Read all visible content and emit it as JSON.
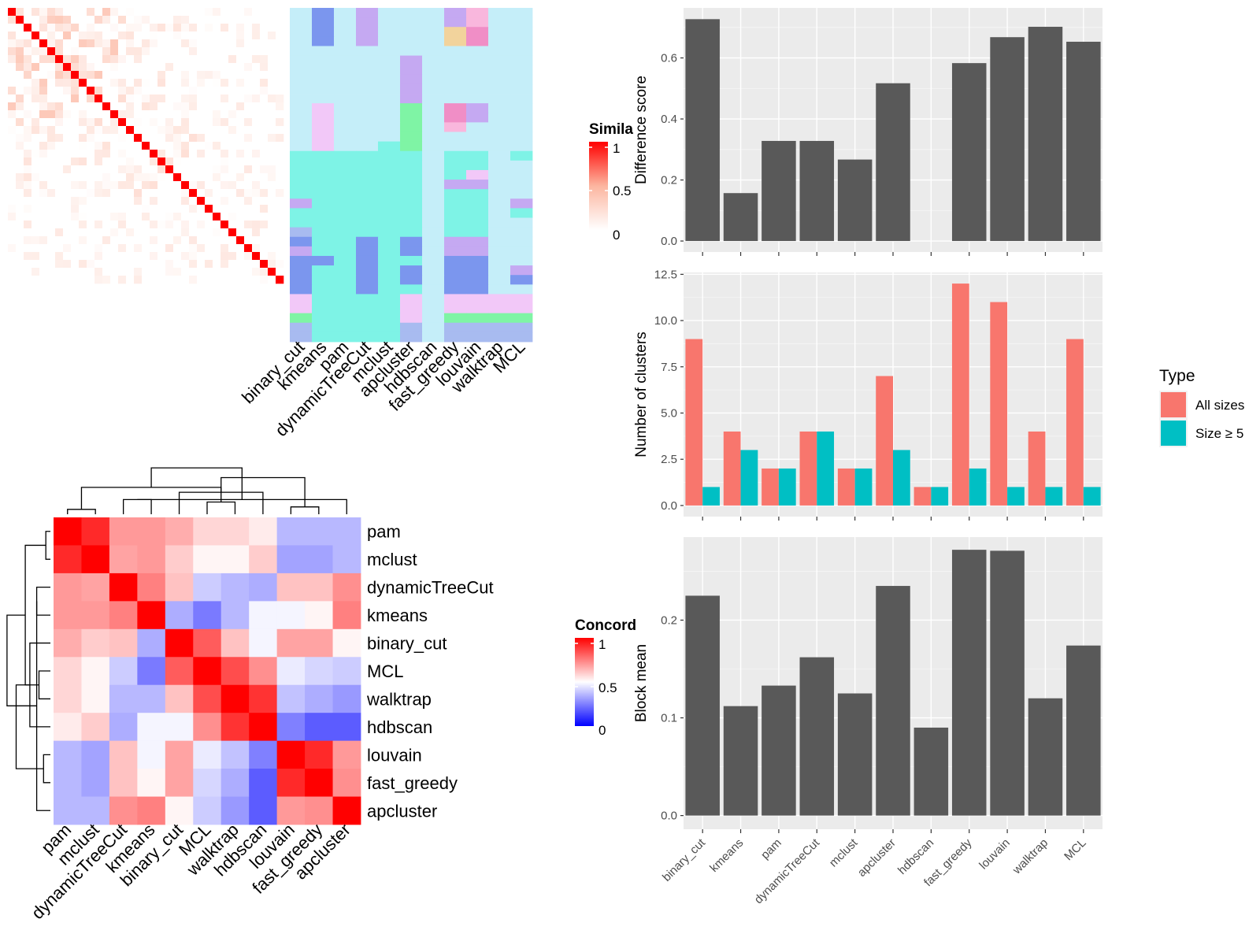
{
  "chart_data": [
    {
      "type": "heatmap",
      "id": "similarity_matrix",
      "legend_title": "Simila",
      "legend_ticks": [
        "1",
        "0.5",
        "0"
      ],
      "colors": {
        "low": "#ffffff",
        "mid": "#fcb59f",
        "high": "#ff0000"
      },
      "n_terms": 35,
      "xlabel": "",
      "ylabel": ""
    },
    {
      "type": "heatmap",
      "id": "cluster_membership",
      "columns": [
        "binary_cut",
        "kmeans",
        "pam",
        "dynamicTreeCut",
        "mclust",
        "apcluster",
        "hdbscan",
        "fast_greedy",
        "louvain",
        "walktrap",
        "MCL"
      ],
      "palette": [
        "#c5eef9",
        "#7ef3e6",
        "#c5a9f2",
        "#7b96ee",
        "#f2c8f8",
        "#7ff4a5",
        "#f08ec6",
        "#f9b7dd",
        "#f2d39c",
        "#a8bbf0",
        "#c5c1f4"
      ],
      "membership_rows": [
        [
          0,
          3,
          0,
          2,
          0,
          0,
          0,
          2,
          7,
          0,
          0
        ],
        [
          0,
          3,
          0,
          2,
          0,
          0,
          0,
          2,
          7,
          0,
          0
        ],
        [
          0,
          3,
          0,
          2,
          0,
          0,
          0,
          8,
          6,
          0,
          0
        ],
        [
          0,
          3,
          0,
          2,
          0,
          0,
          0,
          8,
          6,
          0,
          0
        ],
        [
          0,
          0,
          0,
          0,
          0,
          0,
          0,
          0,
          0,
          0,
          0
        ],
        [
          0,
          0,
          0,
          0,
          0,
          2,
          0,
          0,
          0,
          0,
          0
        ],
        [
          0,
          0,
          0,
          0,
          0,
          2,
          0,
          0,
          0,
          0,
          0
        ],
        [
          0,
          0,
          0,
          0,
          0,
          2,
          0,
          0,
          0,
          0,
          0
        ],
        [
          0,
          0,
          0,
          0,
          0,
          2,
          0,
          0,
          0,
          0,
          0
        ],
        [
          0,
          0,
          0,
          0,
          0,
          2,
          0,
          0,
          0,
          0,
          0
        ],
        [
          0,
          4,
          0,
          0,
          0,
          5,
          0,
          6,
          2,
          0,
          0
        ],
        [
          0,
          4,
          0,
          0,
          0,
          5,
          0,
          6,
          2,
          0,
          0
        ],
        [
          0,
          4,
          0,
          0,
          0,
          5,
          0,
          7,
          0,
          0,
          0
        ],
        [
          0,
          4,
          0,
          0,
          0,
          5,
          0,
          0,
          0,
          0,
          0
        ],
        [
          0,
          4,
          0,
          0,
          1,
          5,
          0,
          0,
          0,
          0,
          0
        ],
        [
          1,
          1,
          1,
          1,
          1,
          1,
          0,
          1,
          1,
          0,
          1
        ],
        [
          1,
          1,
          1,
          1,
          1,
          1,
          0,
          1,
          1,
          0,
          0
        ],
        [
          1,
          1,
          1,
          1,
          1,
          1,
          0,
          1,
          4,
          0,
          0
        ],
        [
          1,
          1,
          1,
          1,
          1,
          1,
          0,
          2,
          2,
          0,
          0
        ],
        [
          1,
          1,
          1,
          1,
          1,
          1,
          0,
          1,
          1,
          0,
          0
        ],
        [
          2,
          1,
          1,
          1,
          1,
          1,
          0,
          1,
          1,
          0,
          2
        ],
        [
          1,
          1,
          1,
          1,
          1,
          1,
          0,
          1,
          1,
          0,
          1
        ],
        [
          1,
          1,
          1,
          1,
          1,
          1,
          0,
          1,
          1,
          0,
          0
        ],
        [
          9,
          1,
          1,
          1,
          1,
          1,
          0,
          1,
          1,
          0,
          0
        ],
        [
          3,
          1,
          1,
          3,
          1,
          3,
          0,
          2,
          2,
          0,
          0
        ],
        [
          2,
          1,
          1,
          3,
          1,
          3,
          0,
          2,
          2,
          0,
          0
        ],
        [
          3,
          3,
          1,
          3,
          1,
          1,
          0,
          3,
          3,
          0,
          0
        ],
        [
          3,
          1,
          1,
          3,
          1,
          3,
          0,
          3,
          3,
          0,
          2
        ],
        [
          3,
          1,
          1,
          3,
          1,
          3,
          0,
          3,
          3,
          0,
          3
        ],
        [
          3,
          1,
          1,
          3,
          1,
          1,
          0,
          3,
          3,
          0,
          0
        ],
        [
          4,
          1,
          1,
          1,
          1,
          4,
          0,
          4,
          4,
          4,
          4
        ],
        [
          4,
          1,
          1,
          1,
          1,
          4,
          0,
          4,
          4,
          4,
          4
        ],
        [
          5,
          1,
          1,
          1,
          1,
          4,
          0,
          5,
          5,
          5,
          5
        ],
        [
          9,
          1,
          1,
          1,
          1,
          9,
          0,
          9,
          9,
          9,
          9
        ],
        [
          9,
          1,
          1,
          1,
          1,
          9,
          0,
          9,
          9,
          9,
          9
        ]
      ]
    },
    {
      "type": "heatmap",
      "id": "concordance",
      "legend_title": "Concord",
      "legend_ticks": [
        "1",
        "0.5",
        "0"
      ],
      "colors": {
        "low": "#0000ff",
        "mid": "#ffffff",
        "high": "#ff0000"
      },
      "rows": [
        "pam",
        "mclust",
        "dynamicTreeCut",
        "kmeans",
        "binary_cut",
        "MCL",
        "walktrap",
        "hdbscan",
        "louvain",
        "fast_greedy",
        "apcluster"
      ],
      "columns": [
        "pam",
        "mclust",
        "dynamicTreeCut",
        "kmeans",
        "binary_cut",
        "MCL",
        "walktrap",
        "hdbscan",
        "louvain",
        "fast_greedy",
        "apcluster"
      ],
      "values": [
        [
          1.0,
          0.92,
          0.7,
          0.7,
          0.66,
          0.58,
          0.58,
          0.54,
          0.36,
          0.36,
          0.36
        ],
        [
          0.92,
          1.0,
          0.68,
          0.7,
          0.6,
          0.52,
          0.52,
          0.6,
          0.32,
          0.32,
          0.36
        ],
        [
          0.7,
          0.68,
          1.0,
          0.75,
          0.62,
          0.4,
          0.36,
          0.34,
          0.62,
          0.62,
          0.72
        ],
        [
          0.7,
          0.7,
          0.75,
          1.0,
          0.34,
          0.24,
          0.36,
          0.48,
          0.48,
          0.52,
          0.75
        ],
        [
          0.66,
          0.6,
          0.62,
          0.34,
          1.0,
          0.82,
          0.62,
          0.48,
          0.68,
          0.68,
          0.52
        ],
        [
          0.58,
          0.52,
          0.4,
          0.24,
          0.82,
          1.0,
          0.85,
          0.72,
          0.46,
          0.42,
          0.4
        ],
        [
          0.58,
          0.52,
          0.36,
          0.36,
          0.62,
          0.85,
          1.0,
          0.9,
          0.38,
          0.34,
          0.3
        ],
        [
          0.54,
          0.6,
          0.34,
          0.48,
          0.48,
          0.72,
          0.9,
          1.0,
          0.25,
          0.18,
          0.18
        ],
        [
          0.36,
          0.32,
          0.62,
          0.48,
          0.68,
          0.46,
          0.38,
          0.25,
          1.0,
          0.92,
          0.7
        ],
        [
          0.36,
          0.32,
          0.62,
          0.52,
          0.68,
          0.42,
          0.34,
          0.18,
          0.92,
          1.0,
          0.72
        ],
        [
          0.36,
          0.36,
          0.72,
          0.75,
          0.52,
          0.4,
          0.3,
          0.18,
          0.7,
          0.72,
          1.0
        ]
      ],
      "row_dendrogram": [
        [
          0,
          1,
          0.1
        ],
        [
          2,
          3,
          0.3
        ],
        [
          9,
          8,
          0.15
        ],
        [
          5,
          6,
          0.25
        ],
        [
          4,
          7,
          0.45
        ],
        [
          12,
          10,
          0.3
        ],
        [
          11,
          15,
          0.55
        ],
        [
          13,
          14,
          0.75
        ],
        [
          16,
          17,
          0.95
        ]
      ],
      "col_dendrogram": [
        [
          0,
          1,
          0.1
        ],
        [
          2,
          3,
          0.3
        ],
        [
          9,
          8,
          0.15
        ],
        [
          5,
          6,
          0.25
        ],
        [
          4,
          7,
          0.45
        ],
        [
          12,
          10,
          0.3
        ],
        [
          11,
          15,
          0.55
        ],
        [
          13,
          14,
          0.75
        ],
        [
          16,
          17,
          0.95
        ]
      ]
    },
    {
      "type": "bar",
      "id": "difference_score",
      "categories": [
        "binary_cut",
        "kmeans",
        "pam",
        "dynamicTreeCut",
        "mclust",
        "apcluster",
        "hdbscan",
        "fast_greedy",
        "louvain",
        "walktrap",
        "MCL"
      ],
      "values": [
        0.727,
        0.157,
        0.328,
        0.328,
        0.267,
        0.517,
        null,
        0.583,
        0.668,
        0.702,
        0.653
      ],
      "xlabel": "",
      "ylabel": "Difference score",
      "yticks": [
        "0.0",
        "0.2",
        "0.4",
        "0.6"
      ],
      "ylim": [
        -0.036,
        0.764
      ],
      "bar_color": "#595959"
    },
    {
      "type": "bar",
      "id": "number_of_clusters",
      "categories": [
        "binary_cut",
        "kmeans",
        "pam",
        "dynamicTreeCut",
        "mclust",
        "apcluster",
        "hdbscan",
        "fast_greedy",
        "louvain",
        "walktrap",
        "MCL"
      ],
      "series": [
        {
          "name": "All sizes",
          "color": "#f8766d",
          "values": [
            9,
            4,
            2,
            4,
            2,
            7,
            1,
            12,
            11,
            4,
            9
          ]
        },
        {
          "name": "Size ≥ 5",
          "color": "#00bfc4",
          "values": [
            1,
            3,
            2,
            4,
            2,
            3,
            1,
            2,
            1,
            1,
            1
          ]
        }
      ],
      "xlabel": "",
      "ylabel": "Number of clusters",
      "yticks": [
        "0.0",
        "2.5",
        "5.0",
        "7.5",
        "10.0",
        "12.5"
      ],
      "ylim": [
        -0.6,
        12.6
      ],
      "legend_title": "Type",
      "legend_position": "right"
    },
    {
      "type": "bar",
      "id": "block_mean",
      "categories": [
        "binary_cut",
        "kmeans",
        "pam",
        "dynamicTreeCut",
        "mclust",
        "apcluster",
        "hdbscan",
        "fast_greedy",
        "louvain",
        "walktrap",
        "MCL"
      ],
      "values": [
        0.225,
        0.112,
        0.133,
        0.162,
        0.125,
        0.235,
        0.09,
        0.272,
        0.271,
        0.12,
        0.174
      ],
      "xlabel": "",
      "ylabel": "Block mean",
      "yticks": [
        "0.0",
        "0.1",
        "0.2"
      ],
      "ylim": [
        -0.014,
        0.285
      ],
      "bar_color": "#595959"
    }
  ]
}
